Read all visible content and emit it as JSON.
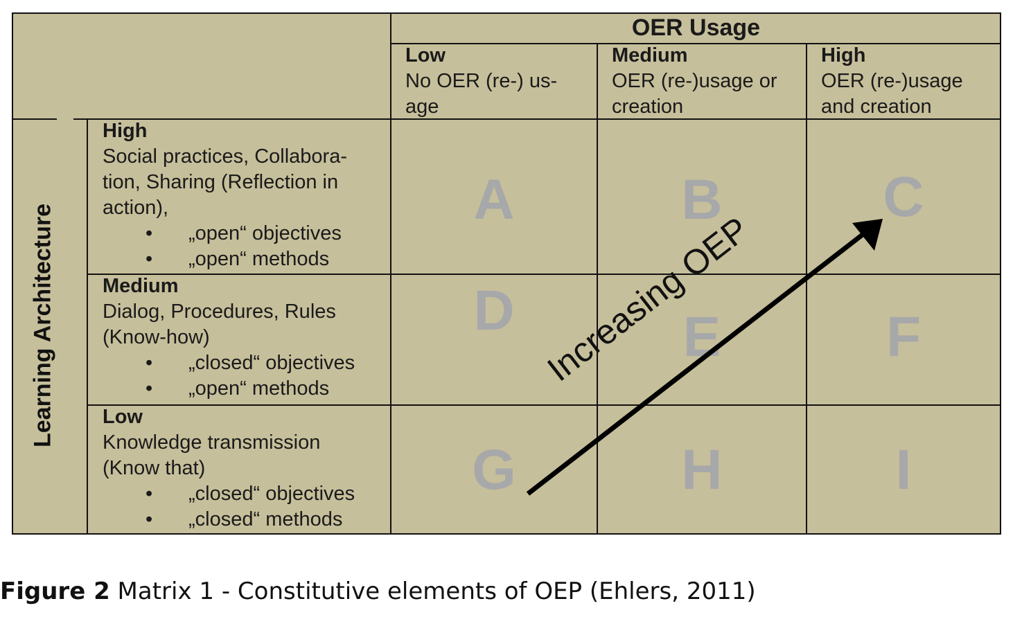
{
  "header": {
    "title": "OER Usage"
  },
  "columns": [
    {
      "level": "Low",
      "desc": "No OER (re-) us-age"
    },
    {
      "level": "Medium",
      "desc": "OER (re-)usage or creation"
    },
    {
      "level": "High",
      "desc": "OER (re-)usage and creation"
    }
  ],
  "row_axis_label": "Learning Architecture",
  "rows": [
    {
      "level": "High",
      "desc": "Social practices, Collabora-tion, Sharing (Reflection in action),",
      "bullets": [
        "„open“ objectives",
        "„open“ methods"
      ]
    },
    {
      "level": "Medium",
      "desc": "Dialog, Procedures, Rules (Know-how)",
      "bullets": [
        "„closed“ objectives",
        "„open“ methods"
      ]
    },
    {
      "level": "Low",
      "desc": "Knowledge transmission (Know that)",
      "bullets": [
        "„closed“ objectives",
        "„closed“ methods"
      ]
    }
  ],
  "cells": [
    "A",
    "B",
    "C",
    "D",
    "E",
    "F",
    "G",
    "H",
    "I"
  ],
  "arrow_label": "Increasing OEP",
  "caption": {
    "label": "Figure 2",
    "text": " Matrix 1 - Constitutive elements of OEP (Ehlers, 2011)"
  },
  "colors": {
    "background": "#c6bf9b",
    "letters": "#a7a8aa",
    "lines": "#111111"
  }
}
